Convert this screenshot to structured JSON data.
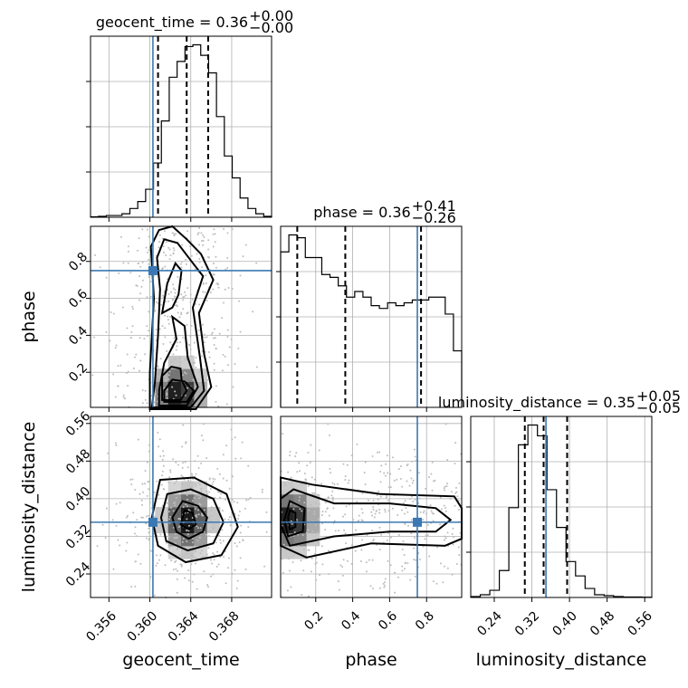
{
  "chart_data": {
    "type": "corner",
    "parameters": [
      {
        "key": "geocent_time",
        "label": "geocent_time",
        "range": [
          0.3542,
          0.3719
        ],
        "ticks": [
          0.356,
          0.36,
          0.364,
          0.368
        ],
        "tick_labels": [
          "0.356",
          "0.360",
          "0.364",
          "0.368"
        ],
        "truth": 0.3603,
        "quantiles": [
          0.3608,
          0.3636,
          0.3657
        ],
        "title_main": "geocent_time = 0.36",
        "title_plus": "+0.00",
        "title_minus": "−0.00",
        "hist": [
          0.5,
          1,
          2,
          2,
          4,
          10,
          18,
          32,
          62,
          110,
          160,
          178,
          195,
          197,
          185,
          165,
          115,
          70,
          45,
          22,
          10,
          4,
          1
        ]
      },
      {
        "key": "phase",
        "label": "phase",
        "range": [
          0.01,
          0.99
        ],
        "ticks": [
          0.2,
          0.4,
          0.6,
          0.8
        ],
        "tick_labels": [
          "0.2",
          "0.4",
          "0.6",
          "0.8"
        ],
        "truth": 0.75,
        "quantiles": [
          0.1,
          0.36,
          0.77
        ],
        "title_main": "phase = 0.36",
        "title_plus": "+0.41",
        "title_minus": "−0.26",
        "hist": [
          275,
          305,
          300,
          265,
          265,
          235,
          230,
          215,
          195,
          205,
          195,
          180,
          175,
          185,
          180,
          185,
          190,
          190,
          195,
          195,
          165,
          100
        ]
      },
      {
        "key": "luminosity_distance",
        "label": "luminosity_distance",
        "range": [
          0.19,
          0.575
        ],
        "ticks": [
          0.24,
          0.32,
          0.4,
          0.48,
          0.56
        ],
        "tick_labels": [
          "0.24",
          "0.32",
          "0.40",
          "0.48",
          "0.56"
        ],
        "truth": 0.35,
        "quantiles": [
          0.305,
          0.345,
          0.395
        ],
        "title_main": "luminosity_distance = 0.35",
        "title_plus": "+0.05",
        "title_minus": "−0.05",
        "hist": [
          1,
          3,
          8,
          30,
          100,
          170,
          192,
          180,
          120,
          78,
          40,
          24,
          10,
          3,
          2,
          1,
          0.5,
          0.5,
          0.3
        ]
      }
    ],
    "pairs": [
      {
        "row": 1,
        "col": 0,
        "peak": [
          0.3628,
          0.08
        ],
        "contours": [
          [
            [
              0.3614,
              0.04
            ],
            [
              0.3636,
              0.04
            ],
            [
              0.3643,
              0.1
            ],
            [
              0.3634,
              0.15
            ],
            [
              0.3622,
              0.16
            ],
            [
              0.3614,
              0.1
            ]
          ],
          [
            [
              0.3612,
              0.18
            ],
            [
              0.3621,
              0.23
            ],
            [
              0.363,
              0.22
            ],
            [
              0.3631,
              0.16
            ],
            [
              0.3636,
              0.1
            ],
            [
              0.363,
              0.05
            ],
            [
              0.3612,
              0.05
            ]
          ],
          [
            [
              0.3609,
              0.02
            ],
            [
              0.3636,
              0.02
            ],
            [
              0.3647,
              0.12
            ],
            [
              0.3637,
              0.28
            ],
            [
              0.3634,
              0.45
            ],
            [
              0.3622,
              0.5
            ],
            [
              0.3626,
              0.38
            ],
            [
              0.3614,
              0.25
            ],
            [
              0.3609,
              0.1
            ]
          ],
          [
            [
              0.3612,
              0.52
            ],
            [
              0.3617,
              0.68
            ],
            [
              0.3625,
              0.79
            ],
            [
              0.3631,
              0.75
            ],
            [
              0.3628,
              0.62
            ],
            [
              0.3622,
              0.55
            ]
          ],
          [
            [
              0.3602,
              0.01
            ],
            [
              0.364,
              0.01
            ],
            [
              0.3653,
              0.1
            ],
            [
              0.3649,
              0.28
            ],
            [
              0.3642,
              0.55
            ],
            [
              0.3652,
              0.72
            ],
            [
              0.3638,
              0.82
            ],
            [
              0.3627,
              0.9
            ],
            [
              0.3614,
              0.92
            ],
            [
              0.3607,
              0.82
            ],
            [
              0.361,
              0.65
            ],
            [
              0.3608,
              0.4
            ],
            [
              0.3605,
              0.15
            ]
          ],
          [
            [
              0.36,
              0.0
            ],
            [
              0.3645,
              0.0
            ],
            [
              0.366,
              0.12
            ],
            [
              0.3653,
              0.3
            ],
            [
              0.3648,
              0.52
            ],
            [
              0.3662,
              0.7
            ],
            [
              0.365,
              0.84
            ],
            [
              0.3636,
              0.92
            ],
            [
              0.3622,
              0.99
            ],
            [
              0.3609,
              0.97
            ],
            [
              0.3601,
              0.88
            ],
            [
              0.3604,
              0.6
            ],
            [
              0.3602,
              0.4
            ],
            [
              0.36,
              0.2
            ]
          ]
        ]
      },
      {
        "row": 2,
        "col": 0,
        "peak": [
          0.3637,
          0.355
        ],
        "contours": [
          [
            [
              0.363,
              0.345
            ],
            [
              0.3638,
              0.335
            ],
            [
              0.3645,
              0.345
            ],
            [
              0.3642,
              0.37
            ],
            [
              0.3634,
              0.375
            ]
          ],
          [
            [
              0.3622,
              0.36
            ],
            [
              0.3626,
              0.33
            ],
            [
              0.3638,
              0.315
            ],
            [
              0.3652,
              0.33
            ],
            [
              0.3656,
              0.36
            ],
            [
              0.3647,
              0.385
            ],
            [
              0.3632,
              0.395
            ]
          ],
          [
            [
              0.3611,
              0.36
            ],
            [
              0.3616,
              0.31
            ],
            [
              0.3637,
              0.29
            ],
            [
              0.3662,
              0.305
            ],
            [
              0.3672,
              0.35
            ],
            [
              0.3662,
              0.4
            ],
            [
              0.364,
              0.42
            ],
            [
              0.3617,
              0.41
            ]
          ],
          [
            [
              0.3602,
              0.36
            ],
            [
              0.3608,
              0.3
            ],
            [
              0.3635,
              0.265
            ],
            [
              0.367,
              0.28
            ],
            [
              0.3686,
              0.34
            ],
            [
              0.3675,
              0.41
            ],
            [
              0.3643,
              0.445
            ],
            [
              0.361,
              0.44
            ]
          ]
        ]
      },
      {
        "row": 2,
        "col": 1,
        "peak": [
          0.07,
          0.355
        ],
        "contours": [
          [
            [
              0.05,
              0.36
            ],
            [
              0.06,
              0.335
            ],
            [
              0.09,
              0.34
            ],
            [
              0.09,
              0.37
            ],
            [
              0.06,
              0.375
            ]
          ],
          [
            [
              0.03,
              0.355
            ],
            [
              0.05,
              0.32
            ],
            [
              0.13,
              0.33
            ],
            [
              0.14,
              0.38
            ],
            [
              0.06,
              0.395
            ]
          ],
          [
            [
              0.01,
              0.345
            ],
            [
              0.06,
              0.3
            ],
            [
              0.3,
              0.32
            ],
            [
              0.6,
              0.33
            ],
            [
              0.85,
              0.33
            ],
            [
              0.93,
              0.355
            ],
            [
              0.85,
              0.38
            ],
            [
              0.6,
              0.39
            ],
            [
              0.3,
              0.39
            ],
            [
              0.08,
              0.42
            ],
            [
              0.01,
              0.4
            ]
          ],
          [
            [
              0.01,
              0.3
            ],
            [
              0.15,
              0.275
            ],
            [
              0.5,
              0.305
            ],
            [
              0.9,
              0.3
            ],
            [
              0.99,
              0.315
            ],
            [
              0.99,
              0.38
            ],
            [
              0.95,
              0.405
            ],
            [
              0.55,
              0.41
            ],
            [
              0.18,
              0.43
            ],
            [
              0.01,
              0.445
            ]
          ]
        ]
      }
    ]
  }
}
